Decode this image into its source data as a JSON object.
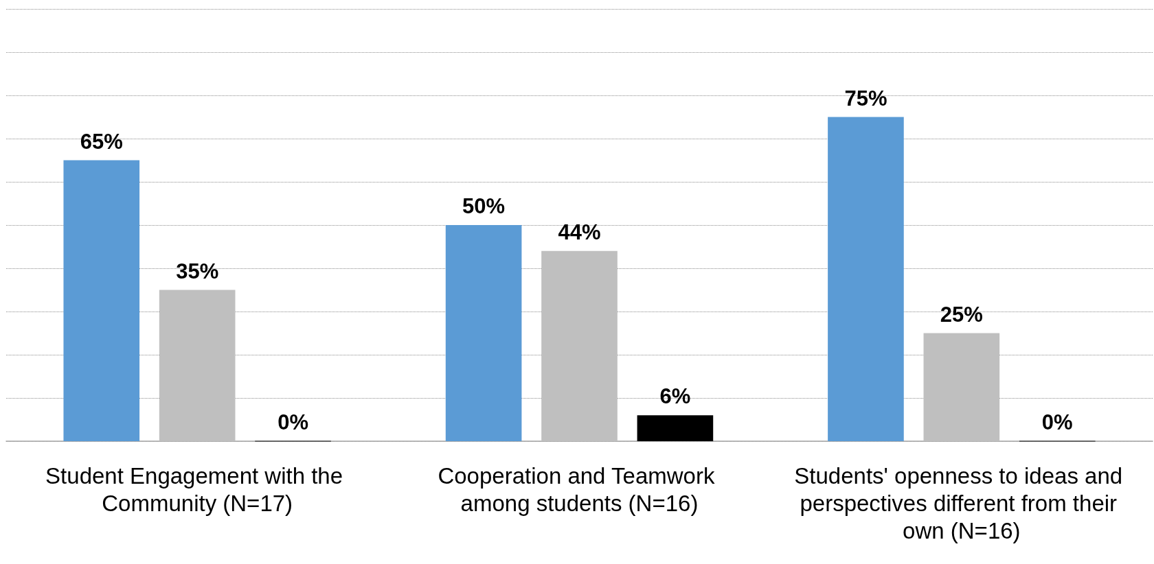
{
  "chart_data": {
    "type": "bar",
    "categories": [
      "Student Engagement with the Community (N=17)",
      "Cooperation and Teamwork among students (N=16)",
      "Students' openness to ideas and perspectives different from their own (N=16)"
    ],
    "series": [
      {
        "color": "#5b9bd5",
        "values": [
          65,
          50,
          75
        ],
        "value_labels": [
          "65%",
          "50%",
          "75%"
        ]
      },
      {
        "color": "#bfbfbf",
        "values": [
          35,
          44,
          25
        ],
        "value_labels": [
          "35%",
          "44%",
          "25%"
        ]
      },
      {
        "color": "#000000",
        "values": [
          0,
          6,
          0
        ],
        "value_labels": [
          "0%",
          "6%",
          "0%"
        ]
      }
    ],
    "ylim": [
      0,
      100
    ],
    "yticks": [
      {
        "value": 0,
        "label": null
      },
      {
        "value": 10,
        "label": null
      },
      {
        "value": 20,
        "label": null
      },
      {
        "value": 30,
        "label": null
      },
      {
        "value": 40,
        "label": null
      },
      {
        "value": 50,
        "label": null
      },
      {
        "value": 60,
        "label": null
      },
      {
        "value": 70,
        "label": null
      },
      {
        "value": 80,
        "label": null
      },
      {
        "value": 90,
        "label": null
      },
      {
        "value": 100,
        "label": null
      }
    ],
    "grid": "y",
    "tick_labels": "x"
  }
}
